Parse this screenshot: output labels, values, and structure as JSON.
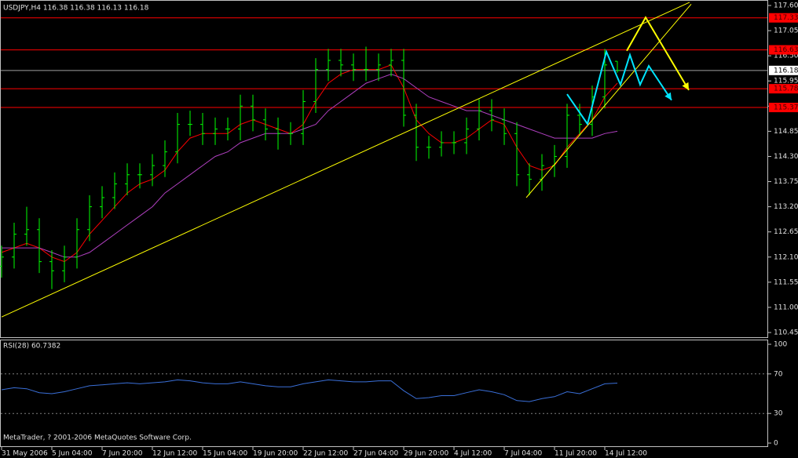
{
  "chart_data": {
    "type": "ohlc",
    "title": "USDJPY,H4  116.38 116.38 116.13 116.18",
    "footer": "MetaTrader, ? 2001-2006 MetaQuotes Software Corp.",
    "color": "#00ff00",
    "xlim": [
      0,
      244
    ],
    "xticks": [
      {
        "value": 0,
        "label": "31 May 2006"
      },
      {
        "value": 16,
        "label": "5 Jun 04:00"
      },
      {
        "value": 32,
        "label": "7 Jun 20:00"
      },
      {
        "value": 48,
        "label": "12 Jun 12:00"
      },
      {
        "value": 64,
        "label": "15 Jun 04:00"
      },
      {
        "value": 80,
        "label": "19 Jun 20:00"
      },
      {
        "value": 96,
        "label": "22 Jun 12:00"
      },
      {
        "value": 112,
        "label": "27 Jun 04:00"
      },
      {
        "value": 128,
        "label": "29 Jun 20:00"
      },
      {
        "value": 144,
        "label": "4 Jul 12:00"
      },
      {
        "value": 160,
        "label": "7 Jul 04:00"
      },
      {
        "value": 176,
        "label": "11 Jul 20:00"
      },
      {
        "value": 192,
        "label": "14 Jul 12:00"
      }
    ],
    "ylim": [
      110.45,
      117.6
    ],
    "yticks": [
      {
        "value": 117.6,
        "label": "117.60"
      },
      {
        "value": 117.05,
        "label": "117.05"
      },
      {
        "value": 116.5,
        "label": "116.50"
      },
      {
        "value": 115.95,
        "label": "115.95"
      },
      {
        "value": 115.4,
        "label": "115.40"
      },
      {
        "value": 114.85,
        "label": "114.85"
      },
      {
        "value": 114.3,
        "label": "114.30"
      },
      {
        "value": 113.75,
        "label": "113.75"
      },
      {
        "value": 113.2,
        "label": "113.20"
      },
      {
        "value": 112.65,
        "label": "112.65"
      },
      {
        "value": 112.1,
        "label": "112.10"
      },
      {
        "value": 111.55,
        "label": "111.55"
      },
      {
        "value": 111.0,
        "label": "111.00"
      },
      {
        "value": 110.45,
        "label": "110.45"
      }
    ],
    "candles": {
      "x": [
        0,
        4,
        8,
        12,
        16,
        20,
        24,
        28,
        32,
        36,
        40,
        44,
        48,
        52,
        56,
        60,
        64,
        68,
        72,
        76,
        80,
        84,
        88,
        92,
        96,
        100,
        104,
        108,
        112,
        116,
        120,
        124,
        128,
        132,
        136,
        140,
        144,
        148,
        152,
        156,
        160,
        164,
        168,
        172,
        176,
        180,
        184,
        188,
        192,
        196
      ],
      "open": [
        111.9,
        112.1,
        112.6,
        112.7,
        112.0,
        111.8,
        112.1,
        112.7,
        113.2,
        113.4,
        113.7,
        113.9,
        113.9,
        114.1,
        114.4,
        115.0,
        115.0,
        114.8,
        114.9,
        114.9,
        115.4,
        115.1,
        114.9,
        114.8,
        114.8,
        115.5,
        116.2,
        116.4,
        116.3,
        116.2,
        116.2,
        116.3,
        116.4,
        115.2,
        114.5,
        114.5,
        114.6,
        114.6,
        114.9,
        115.3,
        115.1,
        114.8,
        113.9,
        113.8,
        114.1,
        114.3,
        115.2,
        115.0,
        115.6,
        116.38
      ],
      "high": [
        112.35,
        112.85,
        113.2,
        112.95,
        112.25,
        112.35,
        112.95,
        113.45,
        113.65,
        113.95,
        114.15,
        114.15,
        114.35,
        114.65,
        115.25,
        115.3,
        115.25,
        115.15,
        115.15,
        115.65,
        115.65,
        115.35,
        115.15,
        115.05,
        115.75,
        116.45,
        116.65,
        116.65,
        116.55,
        116.7,
        116.55,
        116.65,
        116.65,
        115.45,
        114.75,
        114.85,
        114.85,
        115.15,
        115.55,
        115.55,
        115.35,
        115.05,
        114.15,
        114.35,
        114.55,
        115.45,
        115.45,
        115.85,
        116.65,
        116.38
      ],
      "low": [
        111.65,
        111.85,
        112.35,
        111.75,
        111.4,
        111.55,
        111.85,
        112.45,
        112.95,
        113.15,
        113.45,
        113.6,
        113.65,
        113.85,
        114.15,
        114.75,
        114.55,
        114.55,
        114.65,
        114.65,
        114.85,
        114.65,
        114.45,
        114.55,
        114.55,
        115.25,
        115.95,
        116.05,
        115.95,
        115.95,
        115.95,
        116.05,
        114.95,
        114.2,
        114.25,
        114.3,
        114.35,
        114.35,
        114.65,
        114.85,
        114.55,
        113.65,
        113.45,
        113.55,
        113.85,
        114.05,
        114.75,
        114.75,
        115.35,
        116.13
      ],
      "close": [
        112.1,
        112.6,
        112.7,
        112.0,
        111.8,
        112.1,
        112.7,
        113.2,
        113.4,
        113.7,
        113.9,
        113.9,
        114.1,
        114.4,
        115.0,
        115.0,
        114.8,
        114.9,
        114.9,
        115.4,
        115.1,
        114.9,
        114.8,
        114.8,
        115.5,
        116.2,
        116.4,
        116.3,
        116.2,
        116.2,
        116.3,
        116.4,
        115.2,
        114.5,
        114.5,
        114.6,
        114.6,
        114.9,
        115.3,
        115.1,
        114.8,
        113.9,
        113.8,
        114.1,
        114.3,
        115.2,
        115.0,
        115.6,
        116.3,
        116.18
      ]
    },
    "moving_averages": [
      {
        "color": "#ff0000",
        "values": [
          112.2,
          112.3,
          112.4,
          112.3,
          112.1,
          112.0,
          112.2,
          112.6,
          112.9,
          113.2,
          113.5,
          113.7,
          113.8,
          114.0,
          114.4,
          114.7,
          114.8,
          114.8,
          114.8,
          115.0,
          115.1,
          115.0,
          114.9,
          114.8,
          115.0,
          115.5,
          115.9,
          116.1,
          116.2,
          116.2,
          116.2,
          116.3,
          115.8,
          115.1,
          114.8,
          114.6,
          114.6,
          114.7,
          114.9,
          115.1,
          115.0,
          114.5,
          114.1,
          114.0,
          114.1,
          114.5,
          114.8,
          115.1,
          115.6,
          115.9
        ]
      },
      {
        "color": "#b040c0",
        "values": [
          112.3,
          112.3,
          112.3,
          112.3,
          112.2,
          112.1,
          112.1,
          112.2,
          112.4,
          112.6,
          112.8,
          113.0,
          113.2,
          113.5,
          113.7,
          113.9,
          114.1,
          114.3,
          114.4,
          114.6,
          114.7,
          114.8,
          114.8,
          114.8,
          114.9,
          115.0,
          115.3,
          115.5,
          115.7,
          115.9,
          116.0,
          116.1,
          116.0,
          115.8,
          115.6,
          115.5,
          115.4,
          115.3,
          115.3,
          115.2,
          115.1,
          115.0,
          114.9,
          114.8,
          114.7,
          114.7,
          114.7,
          114.7,
          114.8,
          114.85
        ]
      }
    ],
    "levels": [
      117.33,
      116.63,
      115.78,
      115.37
    ],
    "level_color": "#ff0000",
    "current_price": 116.18,
    "trendlines": [
      {
        "color": "#ffff00",
        "x": [
          0,
          219
        ],
        "y": [
          110.79,
          117.67
        ]
      },
      {
        "color": "#ffff00",
        "x": [
          167,
          219.5
        ],
        "y": [
          113.4,
          117.63
        ]
      }
    ],
    "projections": [
      {
        "color": "#ffff00",
        "x": [
          199,
          205,
          218.75
        ],
        "y": [
          116.61,
          117.34,
          115.75
        ]
      },
      {
        "color": "#00e5ff",
        "x": [
          180,
          186.5,
          192.5,
          197,
          200,
          203.25,
          206,
          213.25
        ],
        "y": [
          115.66,
          115.01,
          116.59,
          115.87,
          116.52,
          115.87,
          116.28,
          115.53
        ]
      }
    ],
    "rsi": {
      "label": "RSI(28) 60.7382",
      "color": "#3a6fd8",
      "ylim": [
        0,
        100
      ],
      "yticks": [
        100,
        70,
        30,
        0
      ],
      "levels": [
        70,
        30
      ],
      "values": [
        54,
        56,
        55,
        51,
        50,
        52,
        55,
        58,
        59,
        60,
        61,
        60,
        61,
        62,
        64,
        63,
        61,
        60,
        60,
        62,
        60,
        58,
        57,
        57,
        60,
        62,
        64,
        63,
        62,
        62,
        63,
        63,
        53,
        45,
        46,
        48,
        48,
        51,
        54,
        52,
        49,
        43,
        42,
        45,
        47,
        52,
        50,
        55,
        60,
        60.7382
      ]
    }
  }
}
